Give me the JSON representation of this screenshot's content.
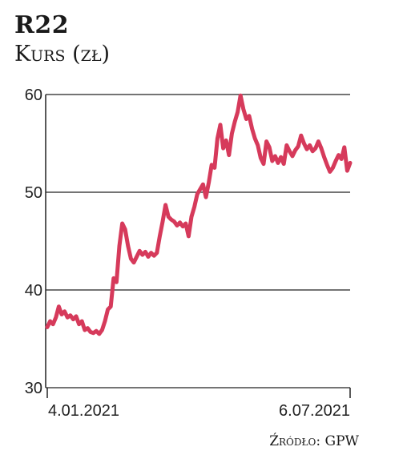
{
  "chart_data": {
    "type": "line",
    "title": "R22",
    "subtitle": "Kurs (zł)",
    "source": "Źródło: GPW",
    "x_start_label": "4.01.2021",
    "x_end_label": "6.07.2021",
    "y_ticks": [
      30,
      40,
      50,
      60
    ],
    "ylim": [
      30,
      60
    ],
    "grid": true,
    "line_color": "#d63a5b",
    "values": [
      36.2,
      36.8,
      36.5,
      37.2,
      38.3,
      37.5,
      37.8,
      37.2,
      37.4,
      37.0,
      37.3,
      36.5,
      36.8,
      35.9,
      36.1,
      35.7,
      35.6,
      35.8,
      35.5,
      35.9,
      36.8,
      38.0,
      38.3,
      41.2,
      40.8,
      44.5,
      46.8,
      46.2,
      44.5,
      43.2,
      42.8,
      43.4,
      44.0,
      43.6,
      43.9,
      43.4,
      43.8,
      43.5,
      43.8,
      45.5,
      47.0,
      48.7,
      47.5,
      47.2,
      47.0,
      46.6,
      46.9,
      46.5,
      46.8,
      45.5,
      47.5,
      48.5,
      49.8,
      50.3,
      50.8,
      49.5,
      51.0,
      52.8,
      52.5,
      55.5,
      56.9,
      54.5,
      55.3,
      53.8,
      56.0,
      57.2,
      58.2,
      59.9,
      58.5,
      57.5,
      57.8,
      56.5,
      55.5,
      54.8,
      53.5,
      52.9,
      55.2,
      54.6,
      53.2,
      53.7,
      53.0,
      53.6,
      52.9,
      54.8,
      54.2,
      53.7,
      54.3,
      54.7,
      55.8,
      55.0,
      54.4,
      54.8,
      54.2,
      54.5,
      55.2,
      54.5,
      53.6,
      52.8,
      52.1,
      52.5,
      53.2,
      53.8,
      53.4,
      54.6,
      52.2,
      53.0
    ]
  }
}
